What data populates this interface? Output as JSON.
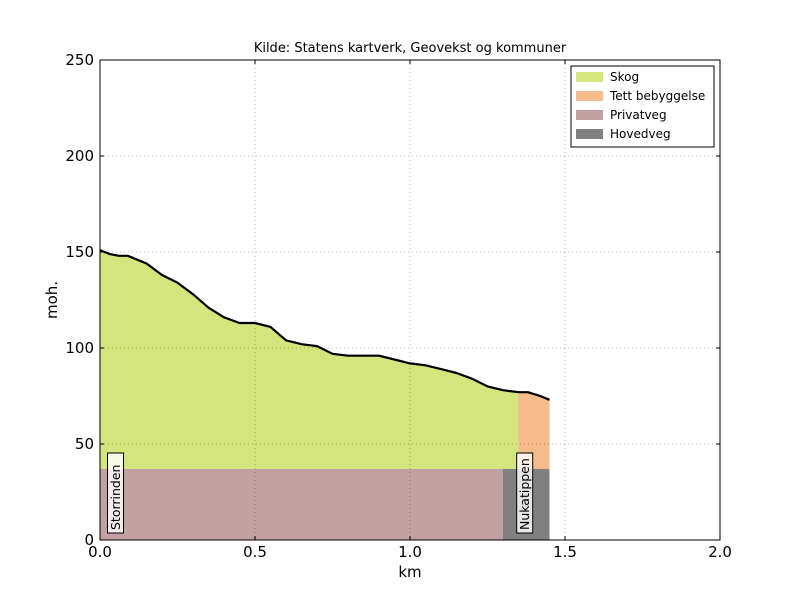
{
  "chart_data": {
    "type": "area",
    "title": "Kilde: Statens kartverk, Geovekst og kommuner",
    "xlabel": "km",
    "ylabel": "moh.",
    "xlim": [
      0,
      2.0
    ],
    "ylim": [
      0,
      250
    ],
    "x_ticks": [
      0,
      0.5,
      1.0,
      1.5,
      2.0
    ],
    "x_tick_labels": [
      "0.0",
      "0.5",
      "1.0",
      "1.5",
      "2.0"
    ],
    "y_ticks": [
      0,
      50,
      100,
      150,
      200,
      250
    ],
    "y_tick_labels": [
      "0",
      "50",
      "100",
      "150",
      "200",
      "250"
    ],
    "grid": true,
    "legend_position": "top-right",
    "legend": [
      {
        "label": "Skog",
        "color": "#d4e57e"
      },
      {
        "label": "Tett bebyggelse",
        "color": "#f5bb8a"
      },
      {
        "label": "Privatveg",
        "color": "#c1a1a1"
      },
      {
        "label": "Hovedveg",
        "color": "#808080"
      }
    ],
    "elevation_profile": {
      "x": [
        0,
        0.03,
        0.06,
        0.09,
        0.12,
        0.15,
        0.2,
        0.25,
        0.3,
        0.35,
        0.4,
        0.45,
        0.48,
        0.5,
        0.55,
        0.6,
        0.65,
        0.7,
        0.75,
        0.8,
        0.85,
        0.9,
        0.95,
        1.0,
        1.05,
        1.1,
        1.15,
        1.2,
        1.25,
        1.3,
        1.35,
        1.38,
        1.4,
        1.42,
        1.45
      ],
      "y": [
        151,
        149,
        148,
        148,
        146,
        144,
        138,
        134,
        128,
        121,
        116,
        113,
        113,
        113,
        111,
        104,
        102,
        101,
        97,
        96,
        96,
        96,
        94,
        92,
        91,
        89,
        87,
        84,
        80,
        78,
        77,
        77,
        76,
        75,
        73
      ]
    },
    "land_cover": [
      {
        "name": "Skog",
        "x_start": 0,
        "x_end": 1.35,
        "color": "#d4e57e"
      },
      {
        "name": "Tett bebyggelse",
        "x_start": 1.35,
        "x_end": 1.45,
        "color": "#f5bb8a"
      }
    ],
    "road_layer": {
      "height": 37,
      "segments": [
        {
          "name": "Privatveg",
          "x_start": 0,
          "x_end": 1.3,
          "color": "#c1a1a1"
        },
        {
          "name": "Hovedveg",
          "x_start": 1.3,
          "x_end": 1.45,
          "color": "#808080"
        }
      ]
    },
    "place_labels": [
      {
        "label": "Storrinden",
        "x": 0.05
      },
      {
        "label": "Nukatippen",
        "x": 1.37
      }
    ]
  }
}
